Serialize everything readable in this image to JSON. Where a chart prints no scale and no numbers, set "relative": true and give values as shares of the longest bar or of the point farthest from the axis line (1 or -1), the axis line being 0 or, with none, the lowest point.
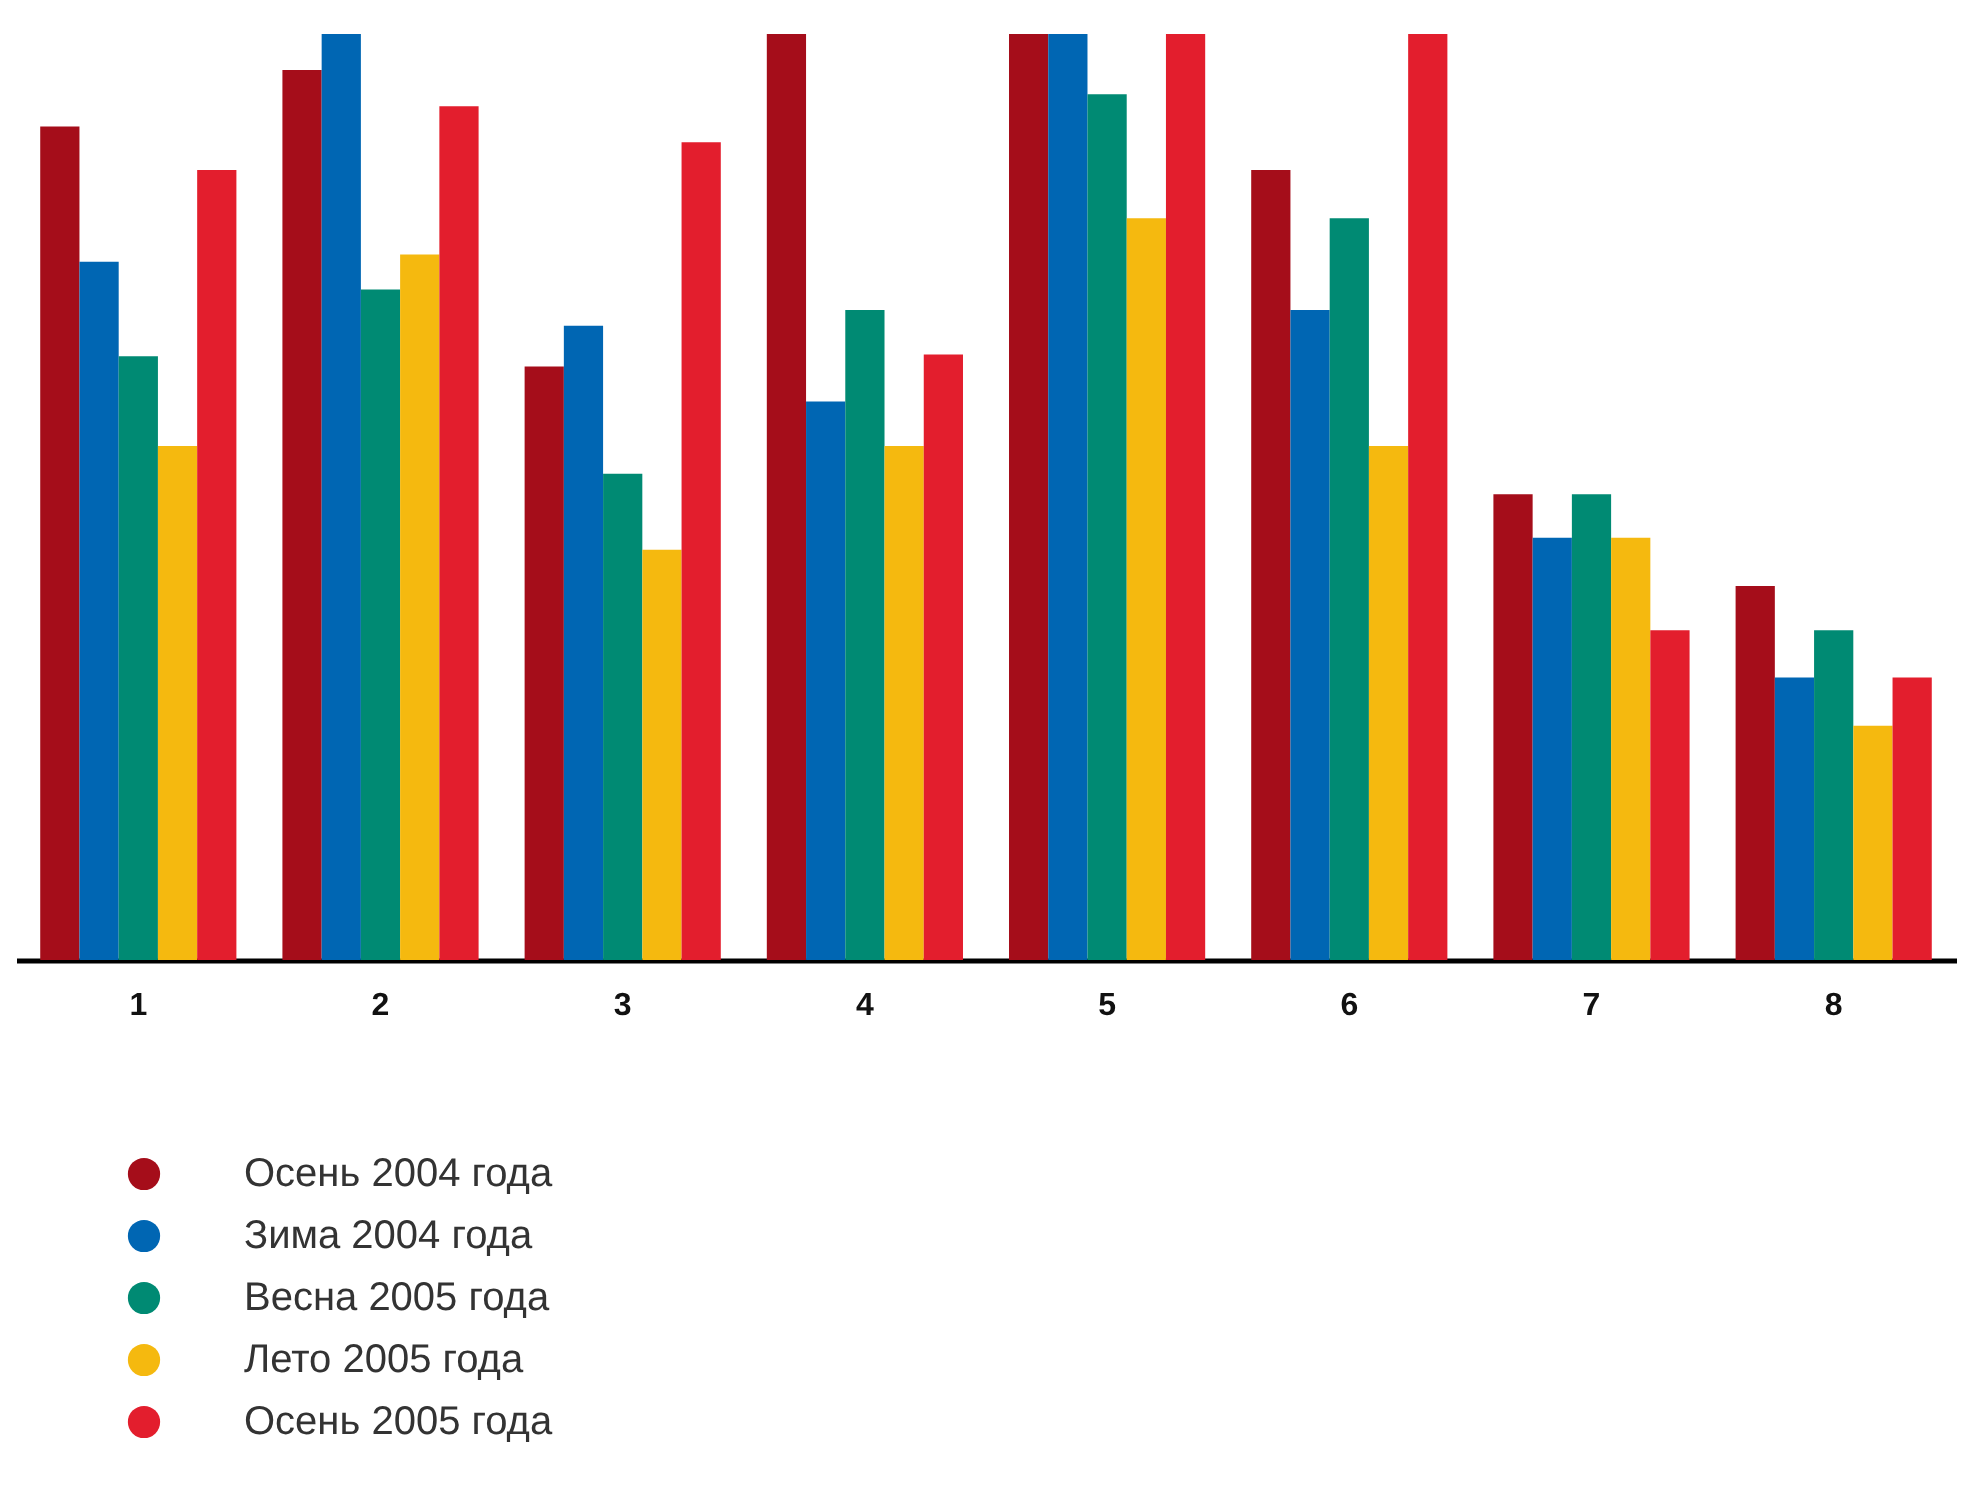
{
  "chart_data": {
    "type": "bar",
    "relative": true,
    "legend": "bottom left",
    "categories": [
      "1",
      "2",
      "3",
      "4",
      "5",
      "6",
      "7",
      "8"
    ],
    "series": [
      {
        "name": "Осень 2004 года",
        "color": "#a50d1a",
        "values": [
          0.9,
          0.961,
          0.641,
          1,
          1,
          0.853,
          0.503,
          0.404
        ]
      },
      {
        "name": "Зима 2004 года",
        "color": "#0066b3",
        "values": [
          0.754,
          1,
          0.685,
          0.603,
          1,
          0.702,
          0.456,
          0.305
        ]
      },
      {
        "name": "Весна 2005 года",
        "color": "#008a73",
        "values": [
          0.652,
          0.724,
          0.525,
          0.702,
          0.935,
          0.801,
          0.503,
          0.356
        ]
      },
      {
        "name": "Лето 2005 года",
        "color": "#f5b90f",
        "values": [
          0.555,
          0.762,
          0.443,
          0.555,
          0.801,
          0.555,
          0.456,
          0.253
        ]
      },
      {
        "name": "Осень 2005 года",
        "color": "#e31e2d",
        "values": [
          0.853,
          0.922,
          0.883,
          0.654,
          1,
          1,
          0.356,
          0.305
        ]
      }
    ]
  }
}
